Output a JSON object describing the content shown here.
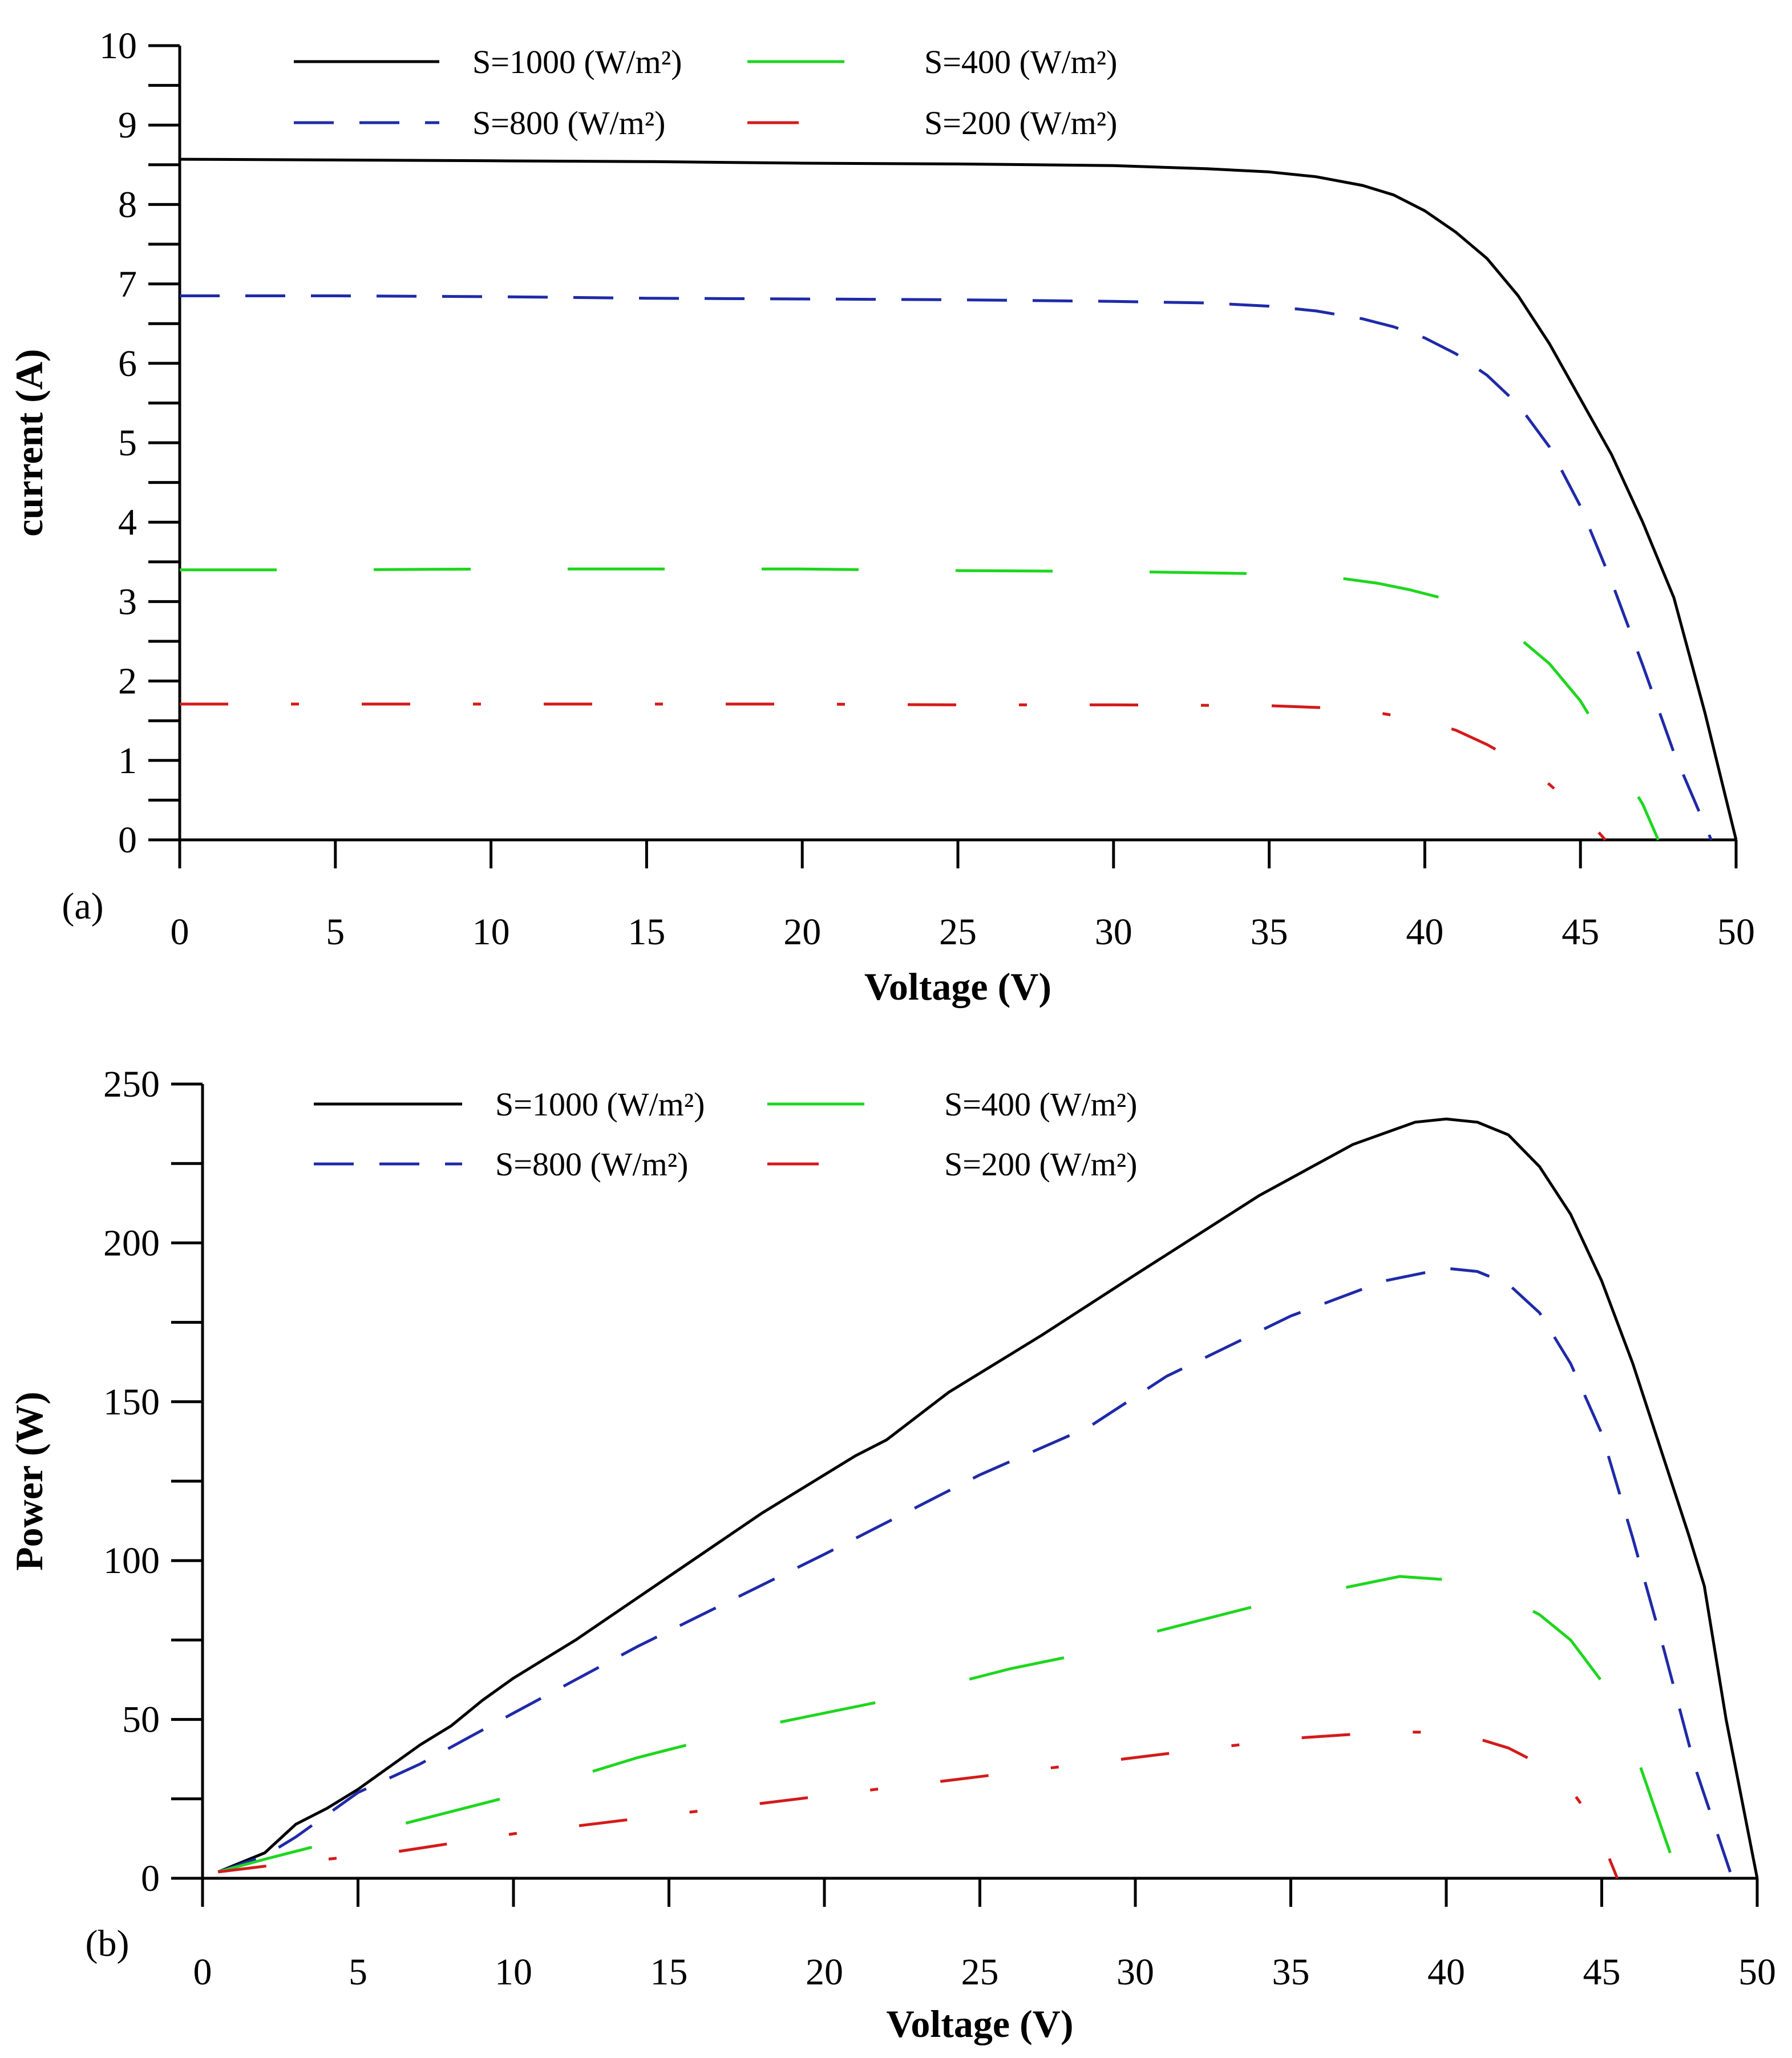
{
  "colors": {
    "s1000": "#000000",
    "s800": "#1f2aa8",
    "s400": "#1ed61e",
    "s200": "#d41a1a"
  },
  "chart_data": [
    {
      "type": "line",
      "panel": "(a)",
      "title": "",
      "xlabel": "Voltage (V)",
      "ylabel": "current (A)",
      "xlim": [
        0,
        50
      ],
      "ylim": [
        0,
        10
      ],
      "xticks": [
        "0",
        "5",
        "10",
        "15",
        "20",
        "25",
        "30",
        "35",
        "40",
        "45",
        "50"
      ],
      "yticks": [
        "0",
        "1",
        "2",
        "3",
        "4",
        "5",
        "6",
        "7",
        "8",
        "9",
        "10"
      ],
      "legend_position": "top",
      "series": [
        {
          "name": "S=1000 (W/m²)",
          "key": "s1000",
          "dash": "solid",
          "x": [
            0,
            5,
            10,
            15,
            20,
            25,
            30,
            33,
            35,
            36.5,
            38,
            39,
            40,
            41,
            42,
            43,
            44,
            45,
            46,
            47,
            48,
            49,
            50
          ],
          "y": [
            8.57,
            8.56,
            8.55,
            8.54,
            8.52,
            8.51,
            8.49,
            8.45,
            8.41,
            8.35,
            8.24,
            8.12,
            7.92,
            7.65,
            7.32,
            6.85,
            6.25,
            5.55,
            4.85,
            4.0,
            3.05,
            1.6,
            0
          ]
        },
        {
          "name": "S=800 (W/m²)",
          "key": "s800",
          "dash": "longdash",
          "x": [
            0,
            5,
            10,
            15,
            20,
            25,
            30,
            33,
            35,
            36.5,
            38,
            39,
            40,
            41,
            42,
            43,
            44,
            45,
            46,
            47,
            48,
            49.2
          ],
          "y": [
            6.85,
            6.85,
            6.84,
            6.82,
            6.81,
            6.8,
            6.78,
            6.76,
            6.72,
            6.66,
            6.56,
            6.46,
            6.32,
            6.12,
            5.85,
            5.48,
            4.95,
            4.2,
            3.25,
            2.2,
            1.1,
            0
          ]
        },
        {
          "name": "S=400 (W/m²)",
          "key": "s400",
          "dash": "sparse",
          "x": [
            0,
            5,
            10,
            15,
            20,
            25,
            30,
            35,
            37,
            38.5,
            39.5,
            40.5,
            42,
            43,
            44,
            45,
            46,
            47,
            47.5
          ],
          "y": [
            3.4,
            3.4,
            3.41,
            3.41,
            3.41,
            3.39,
            3.38,
            3.35,
            3.31,
            3.23,
            3.15,
            3.05,
            2.8,
            2.55,
            2.22,
            1.75,
            1.1,
            0.45,
            0
          ]
        },
        {
          "name": "S=200 (W/m²)",
          "key": "s200",
          "dash": "dashdot",
          "x": [
            0,
            5,
            10,
            15,
            20,
            25,
            30,
            35,
            37,
            38.5,
            40,
            41,
            42,
            43,
            44,
            45,
            45.8
          ],
          "y": [
            1.71,
            1.71,
            1.71,
            1.71,
            1.71,
            1.7,
            1.7,
            1.69,
            1.66,
            1.6,
            1.5,
            1.38,
            1.2,
            0.98,
            0.7,
            0.35,
            0
          ]
        }
      ]
    },
    {
      "type": "line",
      "panel": "(b)",
      "title": "",
      "xlabel": "Voltage (V)",
      "ylabel": "Power (W)",
      "xlim": [
        0,
        50
      ],
      "ylim": [
        0,
        250
      ],
      "xticks": [
        "0",
        "5",
        "10",
        "15",
        "20",
        "25",
        "30",
        "35",
        "40",
        "45",
        "50"
      ],
      "yticks": [
        "0",
        "50",
        "100",
        "150",
        "200",
        "250"
      ],
      "legend_position": "top",
      "series": [
        {
          "name": "S=1000 (W/m²)",
          "key": "s1000",
          "dash": "solid",
          "x": [
            0.5,
            1,
            2,
            3,
            4,
            5,
            6,
            7,
            8,
            9,
            10,
            12,
            15,
            18,
            21,
            22,
            24,
            27,
            30,
            34,
            37,
            39,
            40,
            41,
            42,
            43,
            44,
            45,
            46,
            47,
            47.8,
            48.3,
            49,
            50
          ],
          "y": [
            2,
            4,
            8,
            17,
            22,
            28,
            35,
            42,
            48,
            56,
            63,
            75,
            95,
            115,
            133,
            138,
            153,
            171,
            190,
            215,
            231,
            238,
            239,
            238,
            234,
            224,
            209,
            188,
            162,
            132,
            108,
            92,
            50,
            0
          ]
        },
        {
          "name": "S=800 (W/m²)",
          "key": "s800",
          "dash": "longdash",
          "x": [
            0.5,
            2,
            3,
            5,
            7,
            10,
            14,
            20,
            25,
            28.5,
            31,
            35,
            38,
            40,
            41,
            42,
            43,
            44,
            45,
            46,
            47,
            48,
            49.2
          ],
          "y": [
            2,
            7,
            13,
            27,
            36,
            52,
            73,
            102,
            127,
            142,
            158,
            177,
            188,
            192,
            191,
            187,
            178,
            162,
            140,
            107,
            72,
            35,
            0
          ]
        },
        {
          "name": "S=400 (W/m²)",
          "key": "s400",
          "dash": "sparse",
          "x": [
            0.5,
            2,
            4,
            6,
            8,
            10,
            14,
            18,
            22,
            26,
            28,
            30,
            34,
            36,
            38.5,
            40,
            42,
            43,
            44,
            45,
            46,
            46.6,
            47.2
          ],
          "y": [
            2,
            6,
            11,
            16,
            21,
            26,
            38,
            48,
            56,
            66,
            70,
            76,
            86,
            90,
            95,
            94,
            88,
            83,
            75,
            62,
            42,
            25,
            8
          ]
        },
        {
          "name": "S=200 (W/m²)",
          "key": "s200",
          "dash": "dashdot",
          "x": [
            0.5,
            3,
            6,
            10,
            15,
            20,
            25,
            30,
            35,
            38,
            40,
            41,
            42,
            43,
            44,
            44.8,
            45.5
          ],
          "y": [
            2,
            5,
            8,
            14,
            20,
            26,
            32,
            38,
            44,
            46,
            46,
            44,
            41,
            36,
            28,
            17,
            0
          ]
        }
      ]
    }
  ]
}
